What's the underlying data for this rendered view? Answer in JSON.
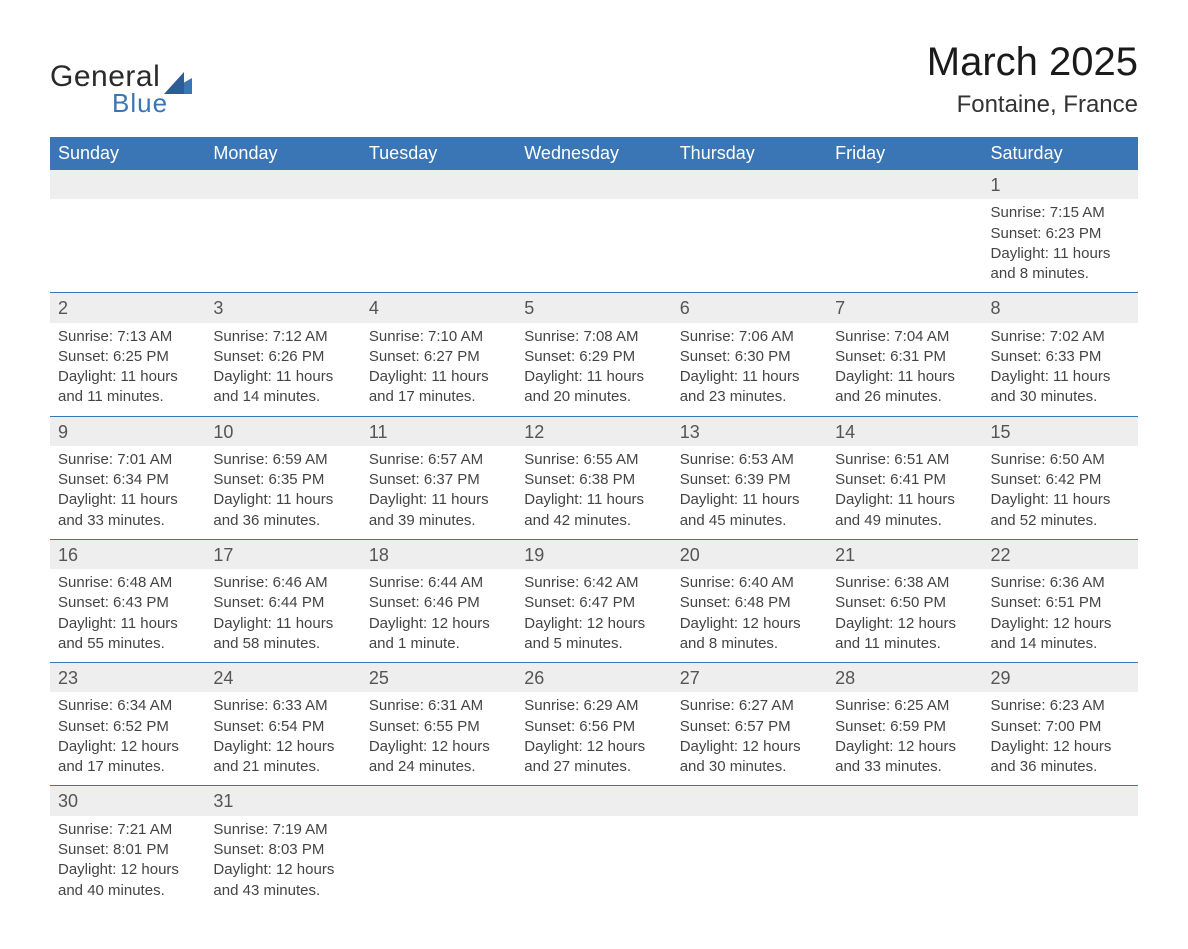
{
  "logo": {
    "line1": "General",
    "line2": "Blue"
  },
  "title": {
    "month": "March 2025",
    "location": "Fontaine, France"
  },
  "colors": {
    "header_bg": "#3a75b5",
    "header_text": "#ffffff",
    "daynum_bg": "#eeeeee",
    "row_border": "#3a75b5",
    "body_text": "#444444",
    "title_text": "#1a1a1a",
    "page_bg": "#ffffff"
  },
  "typography": {
    "month_title_pt": 40,
    "location_pt": 24,
    "dayheader_pt": 18,
    "daynum_pt": 18,
    "body_pt": 15
  },
  "days_of_week": [
    "Sunday",
    "Monday",
    "Tuesday",
    "Wednesday",
    "Thursday",
    "Friday",
    "Saturday"
  ],
  "weeks": [
    [
      null,
      null,
      null,
      null,
      null,
      null,
      {
        "n": "1",
        "sunrise": "Sunrise: 7:15 AM",
        "sunset": "Sunset: 6:23 PM",
        "daylight": "Daylight: 11 hours and 8 minutes."
      }
    ],
    [
      {
        "n": "2",
        "sunrise": "Sunrise: 7:13 AM",
        "sunset": "Sunset: 6:25 PM",
        "daylight": "Daylight: 11 hours and 11 minutes."
      },
      {
        "n": "3",
        "sunrise": "Sunrise: 7:12 AM",
        "sunset": "Sunset: 6:26 PM",
        "daylight": "Daylight: 11 hours and 14 minutes."
      },
      {
        "n": "4",
        "sunrise": "Sunrise: 7:10 AM",
        "sunset": "Sunset: 6:27 PM",
        "daylight": "Daylight: 11 hours and 17 minutes."
      },
      {
        "n": "5",
        "sunrise": "Sunrise: 7:08 AM",
        "sunset": "Sunset: 6:29 PM",
        "daylight": "Daylight: 11 hours and 20 minutes."
      },
      {
        "n": "6",
        "sunrise": "Sunrise: 7:06 AM",
        "sunset": "Sunset: 6:30 PM",
        "daylight": "Daylight: 11 hours and 23 minutes."
      },
      {
        "n": "7",
        "sunrise": "Sunrise: 7:04 AM",
        "sunset": "Sunset: 6:31 PM",
        "daylight": "Daylight: 11 hours and 26 minutes."
      },
      {
        "n": "8",
        "sunrise": "Sunrise: 7:02 AM",
        "sunset": "Sunset: 6:33 PM",
        "daylight": "Daylight: 11 hours and 30 minutes."
      }
    ],
    [
      {
        "n": "9",
        "sunrise": "Sunrise: 7:01 AM",
        "sunset": "Sunset: 6:34 PM",
        "daylight": "Daylight: 11 hours and 33 minutes."
      },
      {
        "n": "10",
        "sunrise": "Sunrise: 6:59 AM",
        "sunset": "Sunset: 6:35 PM",
        "daylight": "Daylight: 11 hours and 36 minutes."
      },
      {
        "n": "11",
        "sunrise": "Sunrise: 6:57 AM",
        "sunset": "Sunset: 6:37 PM",
        "daylight": "Daylight: 11 hours and 39 minutes."
      },
      {
        "n": "12",
        "sunrise": "Sunrise: 6:55 AM",
        "sunset": "Sunset: 6:38 PM",
        "daylight": "Daylight: 11 hours and 42 minutes."
      },
      {
        "n": "13",
        "sunrise": "Sunrise: 6:53 AM",
        "sunset": "Sunset: 6:39 PM",
        "daylight": "Daylight: 11 hours and 45 minutes."
      },
      {
        "n": "14",
        "sunrise": "Sunrise: 6:51 AM",
        "sunset": "Sunset: 6:41 PM",
        "daylight": "Daylight: 11 hours and 49 minutes."
      },
      {
        "n": "15",
        "sunrise": "Sunrise: 6:50 AM",
        "sunset": "Sunset: 6:42 PM",
        "daylight": "Daylight: 11 hours and 52 minutes."
      }
    ],
    [
      {
        "n": "16",
        "sunrise": "Sunrise: 6:48 AM",
        "sunset": "Sunset: 6:43 PM",
        "daylight": "Daylight: 11 hours and 55 minutes."
      },
      {
        "n": "17",
        "sunrise": "Sunrise: 6:46 AM",
        "sunset": "Sunset: 6:44 PM",
        "daylight": "Daylight: 11 hours and 58 minutes."
      },
      {
        "n": "18",
        "sunrise": "Sunrise: 6:44 AM",
        "sunset": "Sunset: 6:46 PM",
        "daylight": "Daylight: 12 hours and 1 minute."
      },
      {
        "n": "19",
        "sunrise": "Sunrise: 6:42 AM",
        "sunset": "Sunset: 6:47 PM",
        "daylight": "Daylight: 12 hours and 5 minutes."
      },
      {
        "n": "20",
        "sunrise": "Sunrise: 6:40 AM",
        "sunset": "Sunset: 6:48 PM",
        "daylight": "Daylight: 12 hours and 8 minutes."
      },
      {
        "n": "21",
        "sunrise": "Sunrise: 6:38 AM",
        "sunset": "Sunset: 6:50 PM",
        "daylight": "Daylight: 12 hours and 11 minutes."
      },
      {
        "n": "22",
        "sunrise": "Sunrise: 6:36 AM",
        "sunset": "Sunset: 6:51 PM",
        "daylight": "Daylight: 12 hours and 14 minutes."
      }
    ],
    [
      {
        "n": "23",
        "sunrise": "Sunrise: 6:34 AM",
        "sunset": "Sunset: 6:52 PM",
        "daylight": "Daylight: 12 hours and 17 minutes."
      },
      {
        "n": "24",
        "sunrise": "Sunrise: 6:33 AM",
        "sunset": "Sunset: 6:54 PM",
        "daylight": "Daylight: 12 hours and 21 minutes."
      },
      {
        "n": "25",
        "sunrise": "Sunrise: 6:31 AM",
        "sunset": "Sunset: 6:55 PM",
        "daylight": "Daylight: 12 hours and 24 minutes."
      },
      {
        "n": "26",
        "sunrise": "Sunrise: 6:29 AM",
        "sunset": "Sunset: 6:56 PM",
        "daylight": "Daylight: 12 hours and 27 minutes."
      },
      {
        "n": "27",
        "sunrise": "Sunrise: 6:27 AM",
        "sunset": "Sunset: 6:57 PM",
        "daylight": "Daylight: 12 hours and 30 minutes."
      },
      {
        "n": "28",
        "sunrise": "Sunrise: 6:25 AM",
        "sunset": "Sunset: 6:59 PM",
        "daylight": "Daylight: 12 hours and 33 minutes."
      },
      {
        "n": "29",
        "sunrise": "Sunrise: 6:23 AM",
        "sunset": "Sunset: 7:00 PM",
        "daylight": "Daylight: 12 hours and 36 minutes."
      }
    ],
    [
      {
        "n": "30",
        "sunrise": "Sunrise: 7:21 AM",
        "sunset": "Sunset: 8:01 PM",
        "daylight": "Daylight: 12 hours and 40 minutes."
      },
      {
        "n": "31",
        "sunrise": "Sunrise: 7:19 AM",
        "sunset": "Sunset: 8:03 PM",
        "daylight": "Daylight: 12 hours and 43 minutes."
      },
      null,
      null,
      null,
      null,
      null
    ]
  ]
}
